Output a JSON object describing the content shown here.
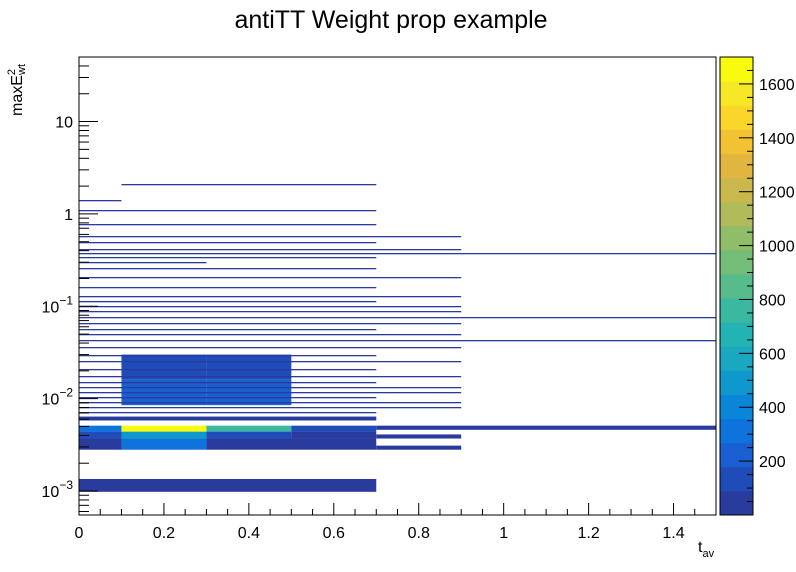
{
  "chart_data": {
    "type": "heatmap",
    "title": "antiTT Weight prop example",
    "xlabel": {
      "base": "t",
      "sub": "av"
    },
    "ylabel": {
      "base": "maxE",
      "sup": "2",
      "sub": "wt"
    },
    "xlim": [
      0,
      1.5
    ],
    "ylog": true,
    "ylim": [
      0.00055,
      50
    ],
    "x_ticks": [
      {
        "v": 0,
        "label": "0"
      },
      {
        "v": 0.2,
        "label": "0.2"
      },
      {
        "v": 0.4,
        "label": "0.4"
      },
      {
        "v": 0.6,
        "label": "0.6"
      },
      {
        "v": 0.8,
        "label": "0.8"
      },
      {
        "v": 1,
        "label": "1"
      },
      {
        "v": 1.2,
        "label": "1.2"
      },
      {
        "v": 1.4,
        "label": "1.4"
      }
    ],
    "y_ticks": [
      {
        "v": 0.001,
        "base": "10",
        "exp": "−3"
      },
      {
        "v": 0.01,
        "base": "10",
        "exp": "−2"
      },
      {
        "v": 0.1,
        "base": "10",
        "exp": "−1"
      },
      {
        "v": 1,
        "base": "1",
        "exp": ""
      },
      {
        "v": 10,
        "base": "10",
        "exp": ""
      }
    ],
    "z_max": 1700,
    "z_ticks": [
      200,
      400,
      600,
      800,
      1000,
      1200,
      1400,
      1600
    ],
    "palette": [
      "#2a3b9e",
      "#1f4cb8",
      "#1a5fcf",
      "#0f73dc",
      "#0a86d8",
      "#0f98cc",
      "#1aa7c0",
      "#22b3b2",
      "#3ab9a0",
      "#57bc8c",
      "#74bd79",
      "#92bd68",
      "#b0bb5a",
      "#cab84d",
      "#e0b640",
      "#f2c233",
      "#fbd52a",
      "#f6e727",
      "#f9fb0e"
    ],
    "cells": [
      {
        "x0": 0.0,
        "x1": 0.7,
        "y0": 0.00098,
        "y1": 0.00135,
        "z": 80
      },
      {
        "x0": 0.0,
        "x1": 0.1,
        "y0": 0.0028,
        "y1": 0.0037,
        "z": 60
      },
      {
        "x0": 0.1,
        "x1": 0.3,
        "y0": 0.0028,
        "y1": 0.0037,
        "z": 330
      },
      {
        "x0": 0.3,
        "x1": 0.7,
        "y0": 0.0028,
        "y1": 0.0037,
        "z": 60
      },
      {
        "x0": 0.7,
        "x1": 0.9,
        "y0": 0.0028,
        "y1": 0.0031,
        "z": 40
      },
      {
        "x0": 0.0,
        "x1": 0.1,
        "y0": 0.0037,
        "y1": 0.0044,
        "z": 120
      },
      {
        "x0": 0.1,
        "x1": 0.3,
        "y0": 0.0037,
        "y1": 0.0044,
        "z": 500
      },
      {
        "x0": 0.3,
        "x1": 0.5,
        "y0": 0.0037,
        "y1": 0.0044,
        "z": 140
      },
      {
        "x0": 0.5,
        "x1": 0.7,
        "y0": 0.0037,
        "y1": 0.0044,
        "z": 70
      },
      {
        "x0": 0.7,
        "x1": 0.9,
        "y0": 0.0037,
        "y1": 0.0041,
        "z": 40
      },
      {
        "x0": 0.0,
        "x1": 0.1,
        "y0": 0.0044,
        "y1": 0.0051,
        "z": 300
      },
      {
        "x0": 0.1,
        "x1": 0.3,
        "y0": 0.0044,
        "y1": 0.0051,
        "z": 1700
      },
      {
        "x0": 0.3,
        "x1": 0.5,
        "y0": 0.0044,
        "y1": 0.0051,
        "z": 720
      },
      {
        "x0": 0.5,
        "x1": 0.7,
        "y0": 0.0044,
        "y1": 0.0051,
        "z": 100
      },
      {
        "x0": 0.7,
        "x1": 1.5,
        "y0": 0.0046,
        "y1": 0.0051,
        "z": 40
      },
      {
        "x0": 0.0,
        "x1": 0.7,
        "y0": 0.0058,
        "y1": 0.0064,
        "z": 50
      },
      {
        "x0": 0.1,
        "x1": 0.3,
        "y0": 0.0085,
        "y1": 0.016,
        "z": 260
      },
      {
        "x0": 0.3,
        "x1": 0.5,
        "y0": 0.0085,
        "y1": 0.016,
        "z": 180
      },
      {
        "x0": 0.1,
        "x1": 0.3,
        "y0": 0.016,
        "y1": 0.03,
        "z": 130
      },
      {
        "x0": 0.3,
        "x1": 0.5,
        "y0": 0.016,
        "y1": 0.03,
        "z": 90
      }
    ],
    "lines": [
      {
        "y": 0.0072,
        "x1": 0.7
      },
      {
        "y": 0.0081,
        "x1": 0.9
      },
      {
        "y": 0.0092,
        "x1": 0.9
      },
      {
        "y": 0.0104,
        "x1": 0.7
      },
      {
        "y": 0.0118,
        "x1": 0.9
      },
      {
        "y": 0.0133,
        "x1": 0.9
      },
      {
        "y": 0.0152,
        "x1": 0.7
      },
      {
        "y": 0.0178,
        "x1": 0.9
      },
      {
        "y": 0.0212,
        "x1": 0.7
      },
      {
        "y": 0.0255,
        "x1": 0.9
      },
      {
        "y": 0.03,
        "x1": 0.7
      },
      {
        "y": 0.036,
        "x1": 0.9
      },
      {
        "y": 0.043,
        "x1": 1.5
      },
      {
        "y": 0.05,
        "x1": 0.9
      },
      {
        "y": 0.057,
        "x1": 0.7
      },
      {
        "y": 0.066,
        "x1": 0.9
      },
      {
        "y": 0.077,
        "x1": 1.5
      },
      {
        "y": 0.088,
        "x1": 0.9
      },
      {
        "y": 0.1,
        "x1": 0.9
      },
      {
        "y": 0.115,
        "x1": 0.7
      },
      {
        "y": 0.13,
        "x1": 0.9
      },
      {
        "y": 0.16,
        "x1": 0.7
      },
      {
        "y": 0.21,
        "x1": 0.9
      },
      {
        "y": 0.26,
        "x1": 0.7
      },
      {
        "y": 0.3,
        "x1": 0.3
      },
      {
        "y": 0.34,
        "x1": 0.7
      },
      {
        "y": 0.38,
        "x1": 1.5
      },
      {
        "y": 0.42,
        "x1": 0.9
      },
      {
        "y": 0.5,
        "x1": 0.7
      },
      {
        "y": 0.58,
        "x1": 0.9
      },
      {
        "y": 0.78,
        "x1": 0.7
      },
      {
        "y": 1.1,
        "x1": 0.7
      },
      {
        "y": 1.4,
        "x0": 0.0,
        "x1": 0.1
      },
      {
        "y": 2.1,
        "x0": 0.1,
        "x1": 0.7
      }
    ]
  }
}
